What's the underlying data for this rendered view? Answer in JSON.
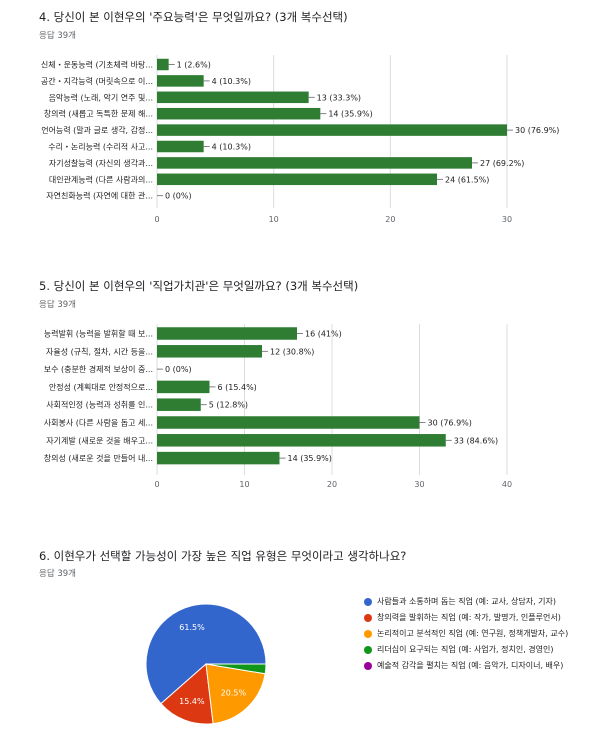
{
  "chart_data": [
    {
      "type": "bar",
      "orientation": "horizontal",
      "title": "4. 당신이 본 이현우의 '주요능력'은 무엇일까요? (3개 복수선택)",
      "subtitle": "응답 39개",
      "categories": [
        "신체・운동능력 (기초체력 바탕...",
        "공간・지각능력 (머릿속으로 이...",
        "음악능력 (노래, 악기 연주 및...",
        "창의력 (새롭고 독특한 문제 해...",
        "언어능력 (말과 글로 생각, 감정...",
        "수리・논리능력 (수리적 사고...",
        "자기성찰능력 (자신의 생각과...",
        "대인관계능력 (다른 사람과의...",
        "자연친화능력 (자연에 대한 관..."
      ],
      "values": [
        1,
        4,
        13,
        14,
        30,
        4,
        27,
        24,
        0
      ],
      "data_labels": [
        "1 (2.6%)",
        "4 (10.3%)",
        "13 (33.3%)",
        "14 (35.9%)",
        "30 (76.9%)",
        "4 (10.3%)",
        "27 (69.2%)",
        "24 (61.5%)",
        "0 (0%)"
      ],
      "xlim": [
        0,
        30
      ],
      "xticks": [
        0,
        10,
        20,
        30
      ],
      "grid": true,
      "color": "#2e7d32"
    },
    {
      "type": "bar",
      "orientation": "horizontal",
      "title": "5. 당신이 본 이현우의 '직업가치관'은 무엇일까요? (3개 복수선택)",
      "subtitle": "응답 39개",
      "categories": [
        "능력발휘 (능력을 발휘할 때 보...",
        "자율성 (규칙, 절차, 시간 등을...",
        "보수 (충분한 경제적 보상이 중...",
        "안정성 (계획대로 안정적으로...",
        "사회적인정 (능력과 성취를 인...",
        "사회봉사 (다른 사람을 돕고 세...",
        "자기계발 (새로운 것을 배우고...",
        "창의성 (새로운 것을 만들어 내..."
      ],
      "values": [
        16,
        12,
        0,
        6,
        5,
        30,
        33,
        14
      ],
      "data_labels": [
        "16 (41%)",
        "12 (30.8%)",
        "0 (0%)",
        "6 (15.4%)",
        "5 (12.8%)",
        "30 (76.9%)",
        "33 (84.6%)",
        "14 (35.9%)"
      ],
      "xlim": [
        0,
        40
      ],
      "xticks": [
        0,
        10,
        20,
        30,
        40
      ],
      "grid": true,
      "color": "#2e7d32"
    },
    {
      "type": "pie",
      "title": "6. 이현우가 선택할 가능성이 가장 높은 직업 유형은 무엇이라고 생각하나요?",
      "subtitle": "응답 39개",
      "categories": [
        "사람들과 소통하며 돕는 직업 (예: 교사, 상담자, 기자)",
        "창의력을 발휘하는 직업 (예: 작가, 발명가, 인플루언서)",
        "논리적이고 분석적인 직업 (예: 연구원, 정책개발자, 교수)",
        "리더십이 요구되는 직업 (예: 사업가, 정치인, 경영인)",
        "예술적 감각을 펼치는 직업 (예: 음악가, 디자이너, 배우)"
      ],
      "values": [
        61.5,
        15.4,
        20.5,
        2.6,
        0
      ],
      "slice_labels": [
        "61.5%",
        "15.4%",
        "20.5%",
        "",
        ""
      ],
      "colors": [
        "#3366cc",
        "#dc3912",
        "#ff9900",
        "#109618",
        "#990099"
      ],
      "legend": "right"
    }
  ]
}
